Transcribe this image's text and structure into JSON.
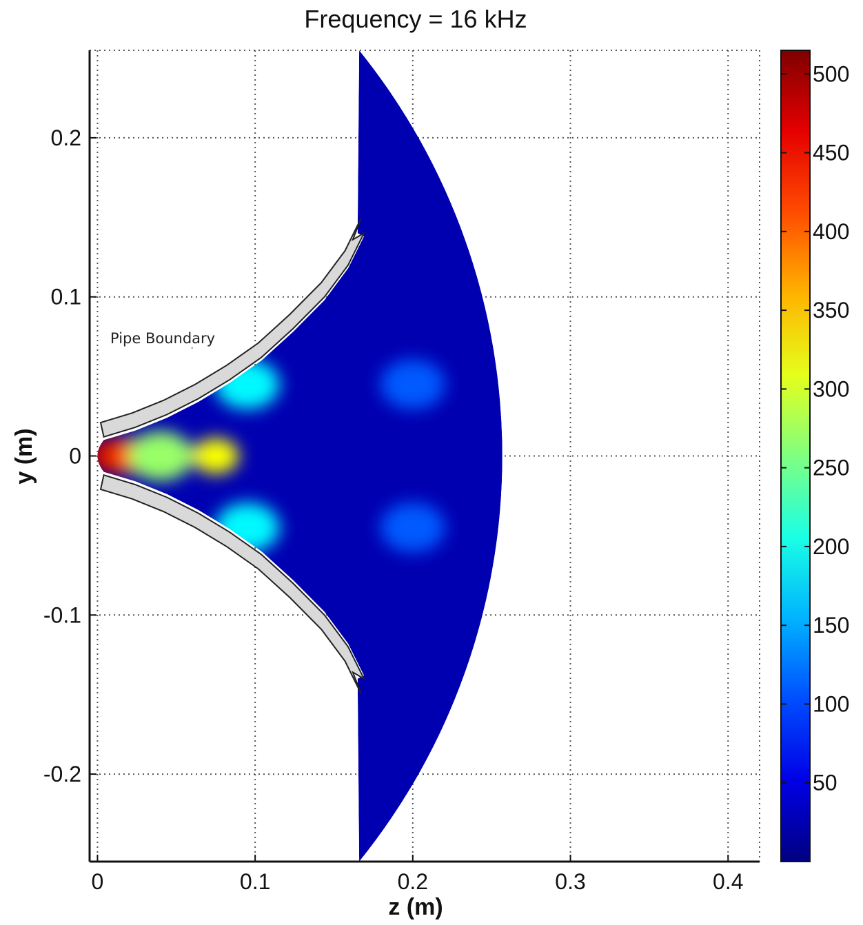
{
  "chart_data": {
    "type": "heatmap",
    "title": "Frequency = 16 kHz",
    "xlabel": "z (m)",
    "ylabel": "y (m)",
    "xlim": [
      -0.005,
      0.42
    ],
    "ylim": [
      -0.255,
      0.255
    ],
    "x_ticks": [
      0,
      0.1,
      0.2,
      0.3,
      0.4
    ],
    "x_tick_labels": [
      "0",
      "0.1",
      "0.2",
      "0.3",
      "0.4"
    ],
    "y_ticks": [
      0.2,
      0.1,
      0,
      -0.1,
      -0.2
    ],
    "y_tick_labels": [
      "0.2",
      "0.1",
      "0",
      "-0.1",
      "-0.2"
    ],
    "grid": true,
    "colorbar": {
      "min": 0,
      "max": 515,
      "ticks": [
        50,
        100,
        150,
        200,
        250,
        300,
        350,
        400,
        450,
        500
      ],
      "tick_labels": [
        "50",
        "100",
        "150",
        "200",
        "250",
        "300",
        "350",
        "400",
        "450",
        "500"
      ],
      "colormap": "jet"
    },
    "annotation": {
      "text": "Pipe Boundary",
      "target": [
        0.06,
        0.065
      ]
    },
    "field_hotspots": [
      {
        "z": 0.008,
        "y": 0,
        "value": 480
      },
      {
        "z": 0.022,
        "y": 0,
        "value": 420
      },
      {
        "z": 0.04,
        "y": 0,
        "value": 270
      },
      {
        "z": 0.075,
        "y": 0,
        "value": 320
      },
      {
        "z": 0.095,
        "y": 0.045,
        "value": 190
      },
      {
        "z": 0.095,
        "y": -0.045,
        "value": 190
      },
      {
        "z": 0.2,
        "y": 0.045,
        "value": 110
      },
      {
        "z": 0.2,
        "y": -0.045,
        "value": 110
      }
    ],
    "background_value": 25
  }
}
